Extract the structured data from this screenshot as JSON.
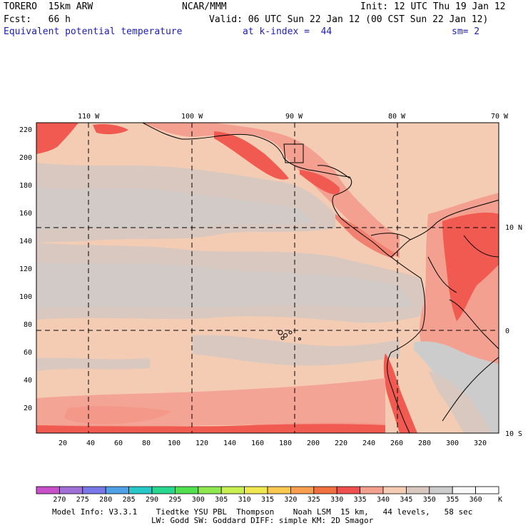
{
  "header": {
    "model": "TORERO  15km ARW",
    "org": "NCAR/MMM",
    "init": "Init: 12 UTC Thu 19 Jan 12",
    "fcst": "Fcst:   66 h",
    "valid": "Valid: 06 UTC Sun 22 Jan 12 (00 CST Sun 22 Jan 12)",
    "field": "Equivalent potential temperature",
    "level": "at k-index =  44",
    "smooth": "sm= 2"
  },
  "map": {
    "lon_labels": [
      "110 W",
      "100 W",
      "90 W",
      "80 W",
      "70 W"
    ],
    "lat_labels": [
      "10 N",
      "0",
      "10 S"
    ],
    "y_ticks": [
      "220",
      "200",
      "180",
      "160",
      "140",
      "120",
      "100",
      "80",
      "60",
      "40",
      "20"
    ],
    "x_ticks": [
      "20",
      "40",
      "60",
      "80",
      "100",
      "120",
      "140",
      "160",
      "180",
      "200",
      "220",
      "240",
      "260",
      "280",
      "300",
      "320"
    ],
    "colors": {
      "c340": "#f4ccb4",
      "c345": "#d8c8c0",
      "c350": "#cccccc",
      "c335": "#f4a090",
      "c330": "#f05a50",
      "c325": "#f08070"
    }
  },
  "colorbar": {
    "labels": [
      "270",
      "275",
      "280",
      "285",
      "290",
      "295",
      "300",
      "305",
      "310",
      "315",
      "320",
      "325",
      "330",
      "335",
      "340",
      "345",
      "350",
      "355",
      "360"
    ],
    "unit": "K",
    "colors": [
      "#c850c8",
      "#a070d8",
      "#7878e8",
      "#50a0e8",
      "#28c8c8",
      "#28d890",
      "#50e050",
      "#90e850",
      "#c8f050",
      "#f0e850",
      "#f8c850",
      "#f8a050",
      "#f07040",
      "#f05050",
      "#f4a090",
      "#f4ccb4",
      "#d8c8c0",
      "#cccccc",
      "#f8f8f8",
      "#ffffff"
    ]
  },
  "footer": {
    "line1": "Model Info: V3.3.1    Tiedtke YSU PBL  Thompson    Noah LSM  15 km,   44 levels,   58 sec",
    "line2": "LW: Godd SW: Goddard DIFF: simple KM: 2D Smagor"
  }
}
